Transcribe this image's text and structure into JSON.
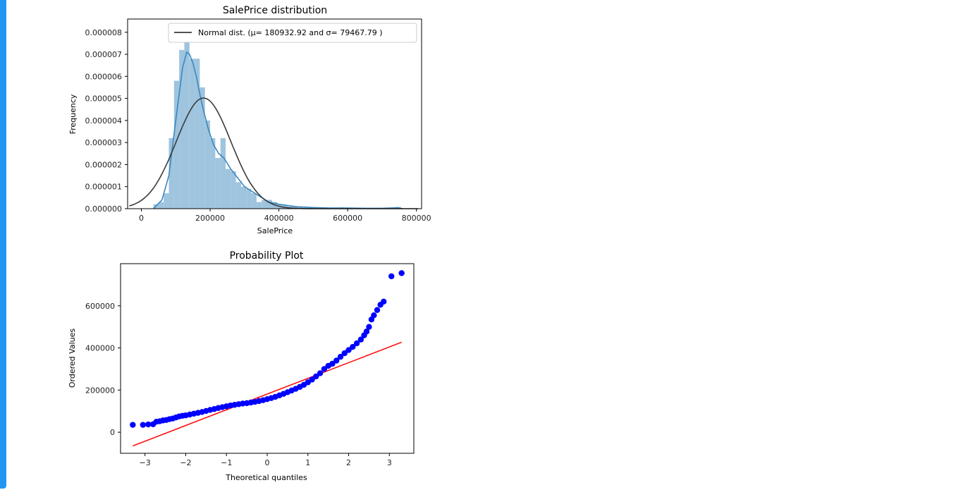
{
  "chart_data": [
    {
      "type": "histogram",
      "title": "SalePrice distribution",
      "xlabel": "SalePrice",
      "ylabel": "Frequency",
      "xlim": [
        -40000,
        815000
      ],
      "ylim": [
        0,
        8.6e-06
      ],
      "xticks": [
        0,
        200000,
        400000,
        600000,
        800000
      ],
      "yticks": [
        0,
        1e-06,
        2e-06,
        3e-06,
        4e-06,
        5e-06,
        6e-06,
        7e-06,
        8e-06
      ],
      "xtick_labels": [
        "0",
        "200000",
        "400000",
        "600000",
        "800000"
      ],
      "ytick_labels": [
        "0.000000",
        "0.000001",
        "0.000002",
        "0.000003",
        "0.000004",
        "0.000005",
        "0.000006",
        "0.000007",
        "0.000008"
      ],
      "bin_width": 15000,
      "bins": [
        {
          "x0": 35000,
          "h": 2e-07
        },
        {
          "x0": 50000,
          "h": 3e-07
        },
        {
          "x0": 65000,
          "h": 7e-07
        },
        {
          "x0": 80000,
          "h": 3.2e-06
        },
        {
          "x0": 95000,
          "h": 5.8e-06
        },
        {
          "x0": 110000,
          "h": 7.2e-06
        },
        {
          "x0": 125000,
          "h": 8.3e-06
        },
        {
          "x0": 140000,
          "h": 6.8e-06
        },
        {
          "x0": 155000,
          "h": 6.8e-06
        },
        {
          "x0": 170000,
          "h": 5.5e-06
        },
        {
          "x0": 185000,
          "h": 4e-06
        },
        {
          "x0": 200000,
          "h": 3.2e-06
        },
        {
          "x0": 215000,
          "h": 2.3e-06
        },
        {
          "x0": 230000,
          "h": 3.2e-06
        },
        {
          "x0": 245000,
          "h": 1.8e-06
        },
        {
          "x0": 260000,
          "h": 1.7e-06
        },
        {
          "x0": 275000,
          "h": 1.2e-06
        },
        {
          "x0": 290000,
          "h": 1e-06
        },
        {
          "x0": 305000,
          "h": 9e-07
        },
        {
          "x0": 320000,
          "h": 7e-07
        },
        {
          "x0": 335000,
          "h": 3e-07
        },
        {
          "x0": 350000,
          "h": 4e-07
        },
        {
          "x0": 365000,
          "h": 4e-07
        },
        {
          "x0": 380000,
          "h": 3e-07
        },
        {
          "x0": 395000,
          "h": 2e-07
        },
        {
          "x0": 410000,
          "h": 1.5e-07
        },
        {
          "x0": 425000,
          "h": 1e-07
        },
        {
          "x0": 440000,
          "h": 8e-08
        },
        {
          "x0": 455000,
          "h": 5e-08
        },
        {
          "x0": 470000,
          "h": 4e-08
        },
        {
          "x0": 485000,
          "h": 4e-08
        },
        {
          "x0": 500000,
          "h": 3e-08
        },
        {
          "x0": 515000,
          "h": 2e-08
        },
        {
          "x0": 545000,
          "h": 2e-08
        },
        {
          "x0": 575000,
          "h": 6e-08
        },
        {
          "x0": 605000,
          "h": 3e-08
        },
        {
          "x0": 740000,
          "h": 8e-08
        }
      ],
      "kde": {
        "x": [
          35000,
          60000,
          80000,
          100000,
          120000,
          132000,
          140000,
          150000,
          160000,
          170000,
          180000,
          195000,
          210000,
          225000,
          240000,
          260000,
          280000,
          300000,
          320000,
          340000,
          370000,
          400000,
          450000,
          500000,
          550000,
          600000,
          650000,
          700000,
          745000,
          760000
        ],
        "y": [
          0.0,
          4e-07,
          1.5e-06,
          4e-06,
          6.4e-06,
          7.1e-06,
          7e-06,
          6.6e-06,
          6e-06,
          5.2e-06,
          4.5e-06,
          3.6e-06,
          2.9e-06,
          2.5e-06,
          2.3e-06,
          1.8e-06,
          1.4e-06,
          1e-06,
          8e-07,
          6e-07,
          3e-07,
          2e-07,
          9e-08,
          5e-08,
          3e-08,
          3e-08,
          2e-08,
          2e-08,
          4e-08,
          0.0
        ]
      },
      "normal_fit": {
        "mu": 180932.92,
        "sigma": 79467.79,
        "x_range": [
          -35000,
          805000
        ]
      },
      "colors": {
        "bars": "#9ec4de",
        "kde": "#3a87c0",
        "normal": "#3a3a3a"
      },
      "legend": {
        "placement": "top-right",
        "entries": [
          "Normal dist. (μ= 180932.92 and σ= 79467.79 )"
        ]
      }
    },
    {
      "type": "scatter",
      "title": "Probability Plot",
      "xlabel": "Theoretical quantiles",
      "ylabel": "Ordered Values",
      "xlim": [
        -3.6,
        3.6
      ],
      "ylim": [
        -100000,
        800000
      ],
      "xticks": [
        -3,
        -2,
        -1,
        0,
        1,
        2,
        3
      ],
      "yticks": [
        0,
        200000,
        400000,
        600000
      ],
      "xtick_labels": [
        "−3",
        "−2",
        "−1",
        "0",
        "1",
        "2",
        "3"
      ],
      "ytick_labels": [
        "0",
        "200000",
        "400000",
        "600000"
      ],
      "points": {
        "x": [
          -3.3,
          -3.05,
          -2.92,
          -2.8,
          -2.72,
          -2.64,
          -2.56,
          -2.48,
          -2.4,
          -2.32,
          -2.24,
          -2.16,
          -2.08,
          -2.0,
          -1.9,
          -1.8,
          -1.7,
          -1.6,
          -1.5,
          -1.4,
          -1.3,
          -1.2,
          -1.1,
          -1.0,
          -0.9,
          -0.8,
          -0.7,
          -0.6,
          -0.5,
          -0.4,
          -0.3,
          -0.2,
          -0.1,
          0.0,
          0.1,
          0.2,
          0.3,
          0.4,
          0.5,
          0.6,
          0.7,
          0.8,
          0.9,
          1.0,
          1.1,
          1.2,
          1.3,
          1.4,
          1.5,
          1.6,
          1.7,
          1.8,
          1.9,
          2.0,
          2.1,
          2.2,
          2.3,
          2.38,
          2.44,
          2.5,
          2.56,
          2.62,
          2.7,
          2.78,
          2.86,
          3.05,
          3.3
        ],
        "y": [
          35000,
          35000,
          37000,
          38000,
          50000,
          52000,
          56000,
          58000,
          62000,
          65000,
          70000,
          75000,
          78000,
          80000,
          84000,
          88000,
          92000,
          96000,
          101000,
          106000,
          110000,
          115000,
          119000,
          123000,
          127000,
          130000,
          133000,
          136000,
          138000,
          141000,
          144000,
          148000,
          152000,
          157000,
          162000,
          168000,
          175000,
          182000,
          190000,
          198000,
          206000,
          215000,
          225000,
          237000,
          250000,
          265000,
          280000,
          300000,
          315000,
          325000,
          340000,
          358000,
          375000,
          390000,
          405000,
          422000,
          440000,
          460000,
          478000,
          500000,
          535000,
          555000,
          580000,
          605000,
          620000,
          740000,
          755000
        ]
      },
      "fit_line": {
        "x": [
          -3.3,
          3.3
        ],
        "y": [
          -65000,
          427000
        ]
      },
      "colors": {
        "points": "#0000ff",
        "fit_line": "#ff0000"
      }
    }
  ]
}
